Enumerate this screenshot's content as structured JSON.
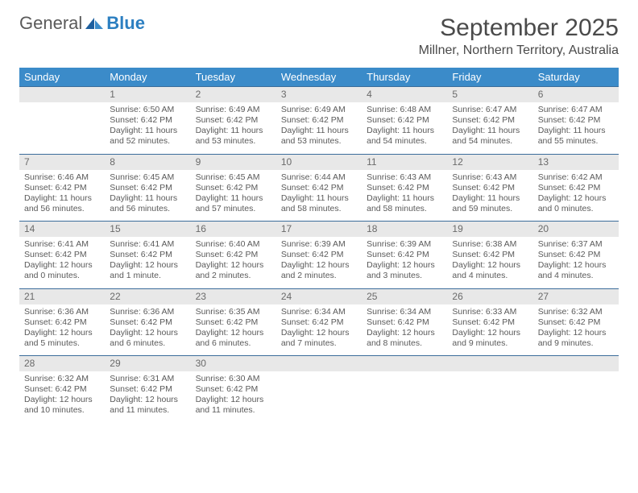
{
  "logo": {
    "general": "General",
    "blue": "Blue"
  },
  "title": "September 2025",
  "location": "Millner, Northern Territory, Australia",
  "colors": {
    "header_bg": "#3b8bc9",
    "header_text": "#ffffff",
    "daynum_bg": "#e8e8e8",
    "daynum_border": "#3b6d9b",
    "body_text": "#5a5a5a",
    "title_text": "#4a4a4a",
    "logo_gray": "#5a5a5a",
    "logo_blue": "#2c7fc1"
  },
  "weekdays": [
    "Sunday",
    "Monday",
    "Tuesday",
    "Wednesday",
    "Thursday",
    "Friday",
    "Saturday"
  ],
  "weeks": [
    [
      null,
      {
        "n": "1",
        "sr": "Sunrise: 6:50 AM",
        "ss": "Sunset: 6:42 PM",
        "d1": "Daylight: 11 hours",
        "d2": "and 52 minutes."
      },
      {
        "n": "2",
        "sr": "Sunrise: 6:49 AM",
        "ss": "Sunset: 6:42 PM",
        "d1": "Daylight: 11 hours",
        "d2": "and 53 minutes."
      },
      {
        "n": "3",
        "sr": "Sunrise: 6:49 AM",
        "ss": "Sunset: 6:42 PM",
        "d1": "Daylight: 11 hours",
        "d2": "and 53 minutes."
      },
      {
        "n": "4",
        "sr": "Sunrise: 6:48 AM",
        "ss": "Sunset: 6:42 PM",
        "d1": "Daylight: 11 hours",
        "d2": "and 54 minutes."
      },
      {
        "n": "5",
        "sr": "Sunrise: 6:47 AM",
        "ss": "Sunset: 6:42 PM",
        "d1": "Daylight: 11 hours",
        "d2": "and 54 minutes."
      },
      {
        "n": "6",
        "sr": "Sunrise: 6:47 AM",
        "ss": "Sunset: 6:42 PM",
        "d1": "Daylight: 11 hours",
        "d2": "and 55 minutes."
      }
    ],
    [
      {
        "n": "7",
        "sr": "Sunrise: 6:46 AM",
        "ss": "Sunset: 6:42 PM",
        "d1": "Daylight: 11 hours",
        "d2": "and 56 minutes."
      },
      {
        "n": "8",
        "sr": "Sunrise: 6:45 AM",
        "ss": "Sunset: 6:42 PM",
        "d1": "Daylight: 11 hours",
        "d2": "and 56 minutes."
      },
      {
        "n": "9",
        "sr": "Sunrise: 6:45 AM",
        "ss": "Sunset: 6:42 PM",
        "d1": "Daylight: 11 hours",
        "d2": "and 57 minutes."
      },
      {
        "n": "10",
        "sr": "Sunrise: 6:44 AM",
        "ss": "Sunset: 6:42 PM",
        "d1": "Daylight: 11 hours",
        "d2": "and 58 minutes."
      },
      {
        "n": "11",
        "sr": "Sunrise: 6:43 AM",
        "ss": "Sunset: 6:42 PM",
        "d1": "Daylight: 11 hours",
        "d2": "and 58 minutes."
      },
      {
        "n": "12",
        "sr": "Sunrise: 6:43 AM",
        "ss": "Sunset: 6:42 PM",
        "d1": "Daylight: 11 hours",
        "d2": "and 59 minutes."
      },
      {
        "n": "13",
        "sr": "Sunrise: 6:42 AM",
        "ss": "Sunset: 6:42 PM",
        "d1": "Daylight: 12 hours",
        "d2": "and 0 minutes."
      }
    ],
    [
      {
        "n": "14",
        "sr": "Sunrise: 6:41 AM",
        "ss": "Sunset: 6:42 PM",
        "d1": "Daylight: 12 hours",
        "d2": "and 0 minutes."
      },
      {
        "n": "15",
        "sr": "Sunrise: 6:41 AM",
        "ss": "Sunset: 6:42 PM",
        "d1": "Daylight: 12 hours",
        "d2": "and 1 minute."
      },
      {
        "n": "16",
        "sr": "Sunrise: 6:40 AM",
        "ss": "Sunset: 6:42 PM",
        "d1": "Daylight: 12 hours",
        "d2": "and 2 minutes."
      },
      {
        "n": "17",
        "sr": "Sunrise: 6:39 AM",
        "ss": "Sunset: 6:42 PM",
        "d1": "Daylight: 12 hours",
        "d2": "and 2 minutes."
      },
      {
        "n": "18",
        "sr": "Sunrise: 6:39 AM",
        "ss": "Sunset: 6:42 PM",
        "d1": "Daylight: 12 hours",
        "d2": "and 3 minutes."
      },
      {
        "n": "19",
        "sr": "Sunrise: 6:38 AM",
        "ss": "Sunset: 6:42 PM",
        "d1": "Daylight: 12 hours",
        "d2": "and 4 minutes."
      },
      {
        "n": "20",
        "sr": "Sunrise: 6:37 AM",
        "ss": "Sunset: 6:42 PM",
        "d1": "Daylight: 12 hours",
        "d2": "and 4 minutes."
      }
    ],
    [
      {
        "n": "21",
        "sr": "Sunrise: 6:36 AM",
        "ss": "Sunset: 6:42 PM",
        "d1": "Daylight: 12 hours",
        "d2": "and 5 minutes."
      },
      {
        "n": "22",
        "sr": "Sunrise: 6:36 AM",
        "ss": "Sunset: 6:42 PM",
        "d1": "Daylight: 12 hours",
        "d2": "and 6 minutes."
      },
      {
        "n": "23",
        "sr": "Sunrise: 6:35 AM",
        "ss": "Sunset: 6:42 PM",
        "d1": "Daylight: 12 hours",
        "d2": "and 6 minutes."
      },
      {
        "n": "24",
        "sr": "Sunrise: 6:34 AM",
        "ss": "Sunset: 6:42 PM",
        "d1": "Daylight: 12 hours",
        "d2": "and 7 minutes."
      },
      {
        "n": "25",
        "sr": "Sunrise: 6:34 AM",
        "ss": "Sunset: 6:42 PM",
        "d1": "Daylight: 12 hours",
        "d2": "and 8 minutes."
      },
      {
        "n": "26",
        "sr": "Sunrise: 6:33 AM",
        "ss": "Sunset: 6:42 PM",
        "d1": "Daylight: 12 hours",
        "d2": "and 9 minutes."
      },
      {
        "n": "27",
        "sr": "Sunrise: 6:32 AM",
        "ss": "Sunset: 6:42 PM",
        "d1": "Daylight: 12 hours",
        "d2": "and 9 minutes."
      }
    ],
    [
      {
        "n": "28",
        "sr": "Sunrise: 6:32 AM",
        "ss": "Sunset: 6:42 PM",
        "d1": "Daylight: 12 hours",
        "d2": "and 10 minutes."
      },
      {
        "n": "29",
        "sr": "Sunrise: 6:31 AM",
        "ss": "Sunset: 6:42 PM",
        "d1": "Daylight: 12 hours",
        "d2": "and 11 minutes."
      },
      {
        "n": "30",
        "sr": "Sunrise: 6:30 AM",
        "ss": "Sunset: 6:42 PM",
        "d1": "Daylight: 12 hours",
        "d2": "and 11 minutes."
      },
      null,
      null,
      null,
      null
    ]
  ]
}
